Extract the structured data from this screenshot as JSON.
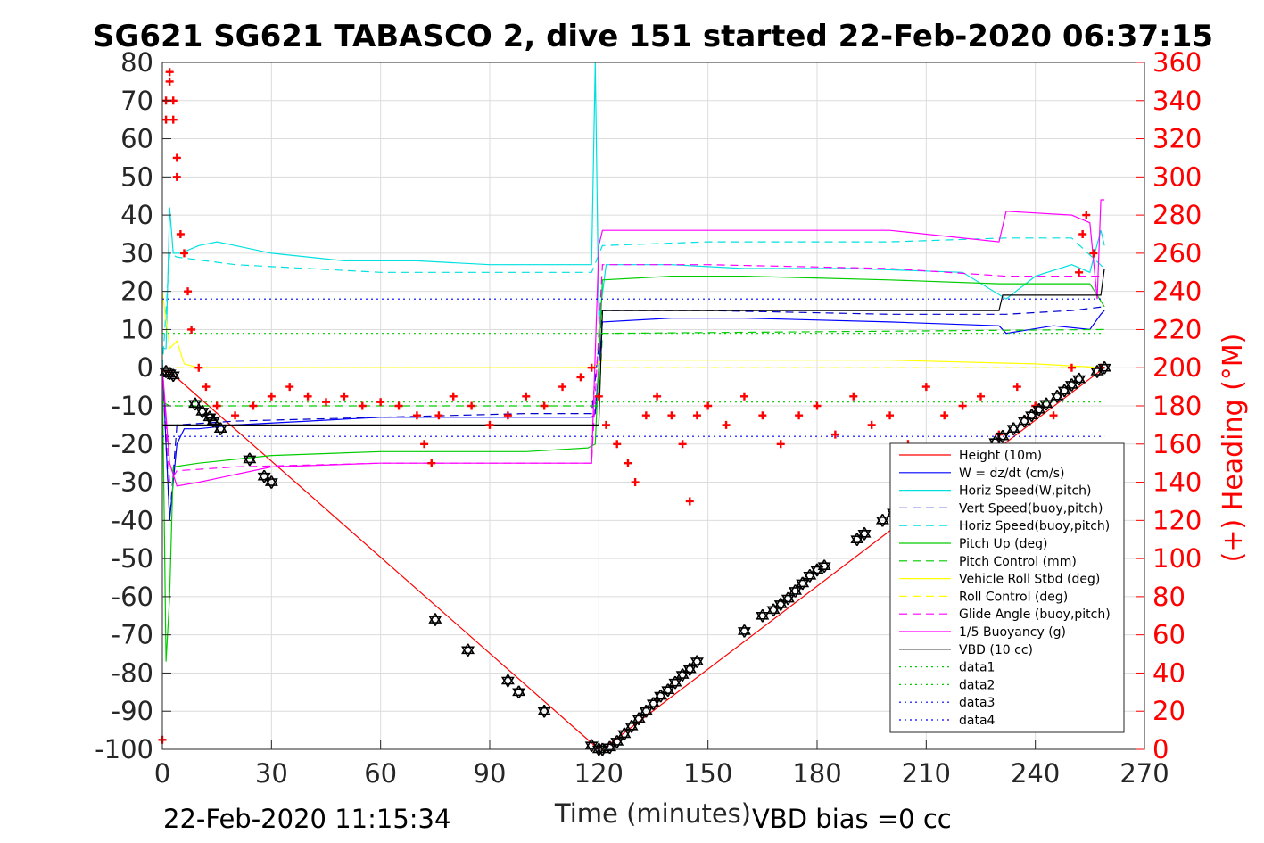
{
  "chart_data": {
    "type": "line",
    "title": "SG621 SG621 TABASCO 2, dive 151 started 22-Feb-2020 06:37:15",
    "xlabel": "Time (minutes)",
    "ylabel_right": "(+) Heading (°M)",
    "xlim": [
      0,
      270
    ],
    "ylim": [
      -100,
      80
    ],
    "ylim_right": [
      0,
      360
    ],
    "x_ticks": [
      0,
      30,
      60,
      90,
      120,
      150,
      180,
      210,
      240,
      270
    ],
    "y_ticks": [
      80,
      70,
      60,
      50,
      40,
      30,
      20,
      10,
      0,
      -10,
      -20,
      -30,
      -40,
      -50,
      -60,
      -70,
      -80,
      -90,
      -100
    ],
    "y_ticks_right": [
      360,
      340,
      320,
      300,
      280,
      260,
      240,
      220,
      200,
      180,
      160,
      140,
      120,
      100,
      80,
      60,
      40,
      20,
      0
    ],
    "grid": true,
    "legend_position": "right",
    "footer_left": "22-Feb-2020 11:15:34",
    "footer_right": "VBD bias =0 cc",
    "colors": {
      "right_axis": "#ff0000"
    },
    "series": [
      {
        "name": "Height (10m)",
        "color": "#ff0000",
        "style": "solid",
        "x": [
          0,
          2,
          120,
          121,
          259
        ],
        "y": [
          -1,
          -1,
          -100,
          -100,
          0
        ]
      },
      {
        "name": "W = dz/dt (cm/s)",
        "color": "#0000ff",
        "style": "solid",
        "x": [
          0,
          1,
          2,
          3,
          4,
          6,
          10,
          20,
          40,
          60,
          90,
          110,
          118,
          119,
          121,
          140,
          160,
          200,
          230,
          232,
          245,
          255,
          258,
          259
        ],
        "y": [
          2,
          -20,
          -40,
          -30,
          -20,
          -16,
          -16,
          -15,
          -14,
          -13,
          -13,
          -13,
          -13,
          -12,
          12,
          13,
          13,
          12,
          11,
          9,
          11,
          10,
          14,
          15
        ]
      },
      {
        "name": "Horiz Speed(W,pitch)",
        "color": "#00e0e0",
        "style": "solid",
        "x": [
          0,
          1,
          2,
          3,
          5,
          10,
          15,
          20,
          30,
          50,
          70,
          90,
          110,
          118,
          119,
          120,
          122,
          140,
          160,
          190,
          220,
          232,
          240,
          250,
          255,
          258,
          259
        ],
        "y": [
          5,
          5,
          42,
          30,
          30,
          32,
          33,
          32,
          30,
          28,
          28,
          27,
          27,
          27,
          80,
          12,
          27,
          27,
          26,
          26,
          25,
          18,
          24,
          27,
          25,
          36,
          32
        ]
      },
      {
        "name": "Vert Speed(buoy,pitch)",
        "color": "#0000cc",
        "style": "dashed",
        "x": [
          0,
          2,
          4,
          20,
          60,
          100,
          118,
          121,
          150,
          200,
          232,
          250,
          259
        ],
        "y": [
          0,
          -40,
          -15,
          -14,
          -13,
          -12,
          -12,
          15,
          15,
          14,
          14,
          15,
          16
        ]
      },
      {
        "name": "Horiz Speed(buoy,pitch)",
        "color": "#00e0e0",
        "style": "dashed",
        "x": [
          0,
          2,
          4,
          20,
          60,
          100,
          118,
          121,
          150,
          200,
          232,
          250,
          259
        ],
        "y": [
          0,
          30,
          29,
          27,
          25,
          25,
          25,
          32,
          33,
          33,
          34,
          34,
          26
        ]
      },
      {
        "name": "Pitch Up (deg)",
        "color": "#00cc00",
        "style": "solid",
        "x": [
          0,
          1,
          2,
          3,
          10,
          30,
          60,
          100,
          117,
          119,
          121,
          140,
          160,
          200,
          230,
          245,
          255,
          259
        ],
        "y": [
          0,
          -77,
          -60,
          -26,
          -25,
          -23,
          -22,
          -22,
          -21,
          -20,
          23,
          24,
          24,
          23,
          22,
          22,
          22,
          16
        ]
      },
      {
        "name": "Pitch Control (mm)",
        "color": "#00cc00",
        "style": "dashed",
        "x": [
          0,
          2,
          120,
          121,
          259
        ],
        "y": [
          -9,
          -10,
          -10,
          9,
          10
        ]
      },
      {
        "name": "Vehicle Roll Stbd (deg)",
        "color": "#ffff00",
        "style": "solid",
        "x": [
          0,
          2,
          4,
          6,
          10,
          20,
          60,
          100,
          118,
          121,
          150,
          200,
          240,
          259
        ],
        "y": [
          20,
          5,
          7,
          1,
          0,
          0,
          0,
          0,
          0,
          2,
          2,
          2,
          1,
          0
        ]
      },
      {
        "name": "Roll Control (deg)",
        "color": "#ffff00",
        "style": "dashed",
        "x": [
          0,
          259
        ],
        "y": [
          0,
          0
        ]
      },
      {
        "name": "Glide Angle (buoy,pitch)",
        "color": "#ff00ff",
        "style": "dashed",
        "x": [
          0,
          2,
          4,
          20,
          60,
          100,
          118,
          121,
          150,
          200,
          232,
          250,
          259
        ],
        "y": [
          0,
          -30,
          -27,
          -26,
          -25,
          -25,
          -25,
          27,
          27,
          26,
          24,
          24,
          24
        ]
      },
      {
        "name": "1/5 Buoyancy (g)",
        "color": "#ff00ff",
        "style": "solid",
        "x": [
          0,
          2,
          4,
          10,
          30,
          60,
          100,
          118,
          120,
          121,
          150,
          200,
          230,
          232,
          250,
          255,
          257,
          258,
          259
        ],
        "y": [
          0,
          -25,
          -31,
          -30,
          -26,
          -25,
          -25,
          -25,
          32,
          36,
          36,
          36,
          33,
          41,
          40,
          38,
          18,
          44,
          44
        ]
      },
      {
        "name": "VBD (10 cc)",
        "color": "#000000",
        "style": "solid",
        "x": [
          0,
          2,
          120,
          121,
          230,
          231,
          250,
          258,
          259
        ],
        "y": [
          -15,
          -15,
          -15,
          15,
          15,
          19,
          19,
          19,
          26
        ]
      },
      {
        "name": "data1",
        "color": "#00cc00",
        "style": "dotted",
        "x": [
          0,
          259
        ],
        "y": [
          -9,
          -9
        ]
      },
      {
        "name": "data2",
        "color": "#00cc00",
        "style": "dotted",
        "x": [
          0,
          259
        ],
        "y": [
          9,
          9
        ]
      },
      {
        "name": "data3",
        "color": "#0000ff",
        "style": "dotted",
        "x": [
          0,
          259
        ],
        "y": [
          -18,
          -18
        ]
      },
      {
        "name": "data4",
        "color": "#0000ff",
        "style": "dotted",
        "x": [
          0,
          259
        ],
        "y": [
          18,
          18
        ]
      }
    ],
    "heading_markers": {
      "marker": "+",
      "color": "#ff0000",
      "axis": "right",
      "x": [
        0,
        1,
        1,
        2,
        2,
        3,
        3,
        4,
        4,
        5,
        6,
        7,
        8,
        10,
        12,
        15,
        20,
        25,
        30,
        35,
        40,
        45,
        50,
        55,
        60,
        65,
        70,
        72,
        74,
        76,
        80,
        85,
        90,
        95,
        100,
        105,
        110,
        115,
        118,
        120,
        122,
        125,
        128,
        130,
        133,
        136,
        140,
        143,
        145,
        147,
        150,
        155,
        160,
        165,
        170,
        175,
        180,
        185,
        190,
        195,
        200,
        205,
        210,
        215,
        220,
        225,
        230,
        235,
        240,
        245,
        250,
        252,
        253,
        254,
        256,
        258
      ],
      "y": [
        5,
        330,
        340,
        355,
        350,
        340,
        330,
        310,
        300,
        270,
        260,
        240,
        220,
        200,
        190,
        180,
        175,
        180,
        185,
        190,
        185,
        182,
        185,
        180,
        182,
        180,
        175,
        160,
        150,
        175,
        185,
        180,
        170,
        175,
        185,
        180,
        190,
        195,
        200,
        185,
        170,
        160,
        150,
        140,
        175,
        185,
        175,
        160,
        130,
        175,
        180,
        170,
        185,
        175,
        160,
        175,
        180,
        165,
        185,
        170,
        175,
        160,
        190,
        175,
        180,
        185,
        165,
        190,
        180,
        175,
        200,
        250,
        270,
        280,
        260,
        200
      ]
    },
    "point_markers": {
      "marker": "hexagram",
      "color": "#000000",
      "x": [
        1,
        2,
        3,
        9,
        11,
        13,
        14,
        16,
        24,
        28,
        30,
        75,
        84,
        95,
        98,
        105,
        118,
        120,
        121,
        123,
        125,
        127,
        129,
        131,
        133,
        135,
        137,
        139,
        141,
        143,
        145,
        147,
        160,
        165,
        168,
        170,
        172,
        174,
        176,
        178,
        180,
        182,
        191,
        193,
        198,
        201,
        203,
        206,
        213,
        216,
        218,
        221,
        224,
        226,
        229,
        231,
        234,
        237,
        239,
        241,
        243,
        246,
        248,
        250,
        252,
        257,
        259
      ],
      "y": [
        -1,
        -1.5,
        -2,
        -9.5,
        -11.5,
        -13,
        -14,
        -16,
        -24,
        -28.5,
        -30,
        -66,
        -74,
        -82,
        -85,
        -90,
        -99,
        -100,
        -100,
        -99.5,
        -98,
        -96,
        -94,
        -92,
        -90,
        -88,
        -86,
        -84.5,
        -82.5,
        -80.5,
        -79,
        -77,
        -69,
        -65,
        -63.5,
        -62,
        -60.5,
        -58.5,
        -56.5,
        -54.5,
        -53,
        -52,
        -45,
        -43.5,
        -40,
        -38,
        -36,
        -34,
        -30,
        -28,
        -26.5,
        -25,
        -23,
        -21.5,
        -19.5,
        -18,
        -16,
        -14,
        -12.5,
        -11,
        -9.5,
        -7.5,
        -6,
        -4.5,
        -3,
        -1,
        0
      ]
    }
  }
}
